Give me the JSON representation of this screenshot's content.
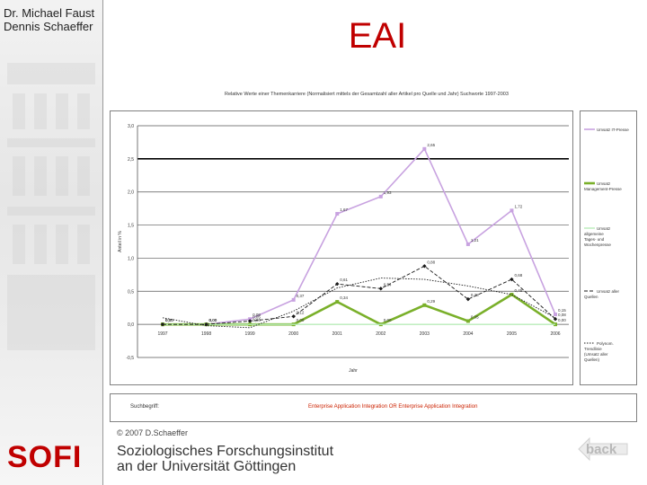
{
  "slide": {
    "authors": [
      "Dr. Michael Faust",
      "Dennis Schaeffer"
    ],
    "title": "EAI",
    "chart_header": "Relative Werte einer Themenkarriere (Normalisiert mittels der Gesamtzahl aller Artikel pro Quelle und Jahr) Suchworte 1997-2003",
    "search_label": "Suchbegriff:",
    "search_term": "Enterprise Application Integration OR Enterprise Application Integration",
    "copyright": "© 2007 D.Schaeffer",
    "logo": "SOFI",
    "institute": [
      "Soziologisches Forschungsinstitut",
      "an der Universität Göttingen"
    ],
    "back_label": "back"
  },
  "colors": {
    "title": "#c00000",
    "logo": "#c00000",
    "search_term": "#cc2200",
    "it_press": "#c8a2e0",
    "management_press": "#7ab02a",
    "daily_press": "#b8ecb8",
    "all_sources": "#1a1a1a",
    "average": "#1a1a1a"
  },
  "chart_data": {
    "type": "line",
    "x": [
      "1997",
      "1998",
      "1999",
      "2000",
      "2001",
      "2002",
      "2003",
      "2004",
      "2005",
      "2006"
    ],
    "ylabel": "Anteil in %",
    "xlabel": "Jahr",
    "ylim": [
      -0.5,
      3.0
    ],
    "yticks": [
      "3,0",
      "2,5",
      "2,0",
      "1,5",
      "1,0",
      "0,5",
      "0,0",
      "-0,5"
    ],
    "grid": true,
    "legend_position": "right",
    "series": [
      {
        "name": "Umsatz IT-Presse",
        "values": [
          0.0,
          0.0,
          0.08,
          0.37,
          1.67,
          1.93,
          2.65,
          1.21,
          1.72,
          0.15
        ],
        "labels": [
          "0,00",
          "0,00",
          "0,08",
          "0,37",
          "1,67",
          "1,93",
          "2,65",
          "1,21",
          "1,72",
          "0,15"
        ]
      },
      {
        "name": "Umsatz Management-Presse",
        "values": [
          0.0,
          0.0,
          0.0,
          0.0,
          0.34,
          0.0,
          0.29,
          0.05,
          0.45,
          0.0
        ],
        "labels": [
          "0,00",
          "0,00",
          "0,00",
          "0,00",
          "0,34",
          "0,00",
          "0,29",
          "0,05",
          "0,45",
          "0,00"
        ]
      },
      {
        "name": "Umsatz allgemeine Tages- und Wochenpresse",
        "values": [
          0.0,
          0.0,
          0.0,
          0.0,
          0.0,
          0.0,
          0.0,
          0.0,
          0.0,
          0.0
        ],
        "labels": []
      },
      {
        "name": "Umsatz aller Quellen",
        "values": [
          0.0,
          0.0,
          0.05,
          0.12,
          0.61,
          0.54,
          0.88,
          0.38,
          0.68,
          0.08
        ],
        "labels": [
          "0,00",
          "0,00",
          "0,05",
          "0,12",
          "0,61",
          "0,54",
          "0,88",
          "0,38",
          "0,68",
          "0,08"
        ]
      },
      {
        "name": "Polynom. Trendlinie (Umsatz aller Quellen)",
        "values": [
          0.1,
          -0.02,
          -0.05,
          0.2,
          0.55,
          0.7,
          0.68,
          0.58,
          0.45,
          0.1
        ],
        "labels": []
      }
    ]
  }
}
